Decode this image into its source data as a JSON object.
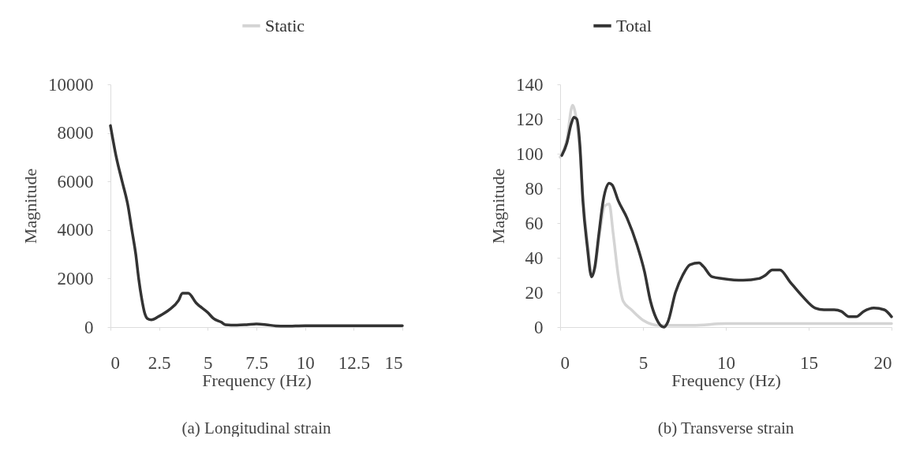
{
  "chart_data": [
    {
      "type": "line",
      "xlabel": "Frequency (Hz)",
      "ylabel": "Magnitude",
      "annotations": [
        "(a) Longitudinal strain"
      ],
      "xlim": [
        0,
        15
      ],
      "xticks": [
        0,
        2.5,
        5,
        7.5,
        10,
        12.5,
        15
      ],
      "ylim": [
        0,
        10000
      ],
      "yticks": [
        0,
        2000,
        4000,
        6000,
        8000,
        10000
      ],
      "legend": "top",
      "grid": false,
      "x": [
        0,
        0.3,
        0.6,
        0.9,
        1.1,
        1.3,
        1.45,
        1.6,
        1.75,
        1.9,
        2.1,
        2.5,
        3,
        3.5,
        3.7,
        4,
        4.4,
        5,
        5.3,
        5.7,
        5.9,
        6.5,
        7,
        7.5,
        8,
        8.5,
        9,
        10,
        11,
        12,
        13,
        14,
        15
      ],
      "series": [
        {
          "name": "Total",
          "color": "#333333",
          "values": [
            8300,
            7000,
            6000,
            5000,
            4000,
            3000,
            2000,
            1200,
            600,
            350,
            300,
            450,
            700,
            1100,
            1400,
            1400,
            1000,
            600,
            350,
            200,
            100,
            80,
            100,
            130,
            100,
            50,
            40,
            60,
            60,
            60,
            60,
            60,
            60
          ]
        }
      ]
    },
    {
      "type": "line",
      "xlabel": "Frequency (Hz)",
      "ylabel": "Magnitude",
      "annotations": [
        "(b) Transverse strain"
      ],
      "xlim": [
        0,
        20
      ],
      "xticks": [
        0,
        5,
        10,
        15,
        20
      ],
      "ylim": [
        0,
        140
      ],
      "yticks": [
        0,
        20,
        40,
        60,
        80,
        100,
        120,
        140
      ],
      "legend": "top",
      "grid": false,
      "series": [
        {
          "name": "Static",
          "color": "#d4d4d4",
          "x": [
            0,
            0.4,
            0.75,
            1.0,
            1.2,
            1.4,
            1.7,
            1.9,
            2.1,
            2.4,
            2.7,
            2.96,
            3.2,
            3.5,
            3.8,
            4.3,
            5,
            6,
            8,
            10,
            12,
            14,
            16,
            18,
            20
          ],
          "values": [
            98,
            108,
            128,
            118,
            100,
            72,
            45,
            29,
            34,
            55,
            70,
            71,
            54,
            30,
            15,
            10,
            4,
            1,
            1,
            2,
            2,
            2,
            2,
            2,
            2
          ]
        },
        {
          "name": "Total",
          "color": "#333333",
          "x": [
            0.1,
            0.4,
            0.66,
            0.83,
            1.0,
            1.19,
            1.37,
            1.63,
            1.9,
            2.08,
            2.34,
            2.6,
            2.96,
            3.14,
            3.5,
            4.03,
            4.65,
            5.09,
            5.45,
            5.8,
            6.25,
            6.5,
            6.96,
            7.4,
            7.84,
            8.38,
            8.64,
            9.17,
            9.8,
            11.04,
            12,
            12.4,
            12.8,
            13.26,
            13.88,
            14.6,
            15.39,
            15.92,
            16.54,
            16.98,
            17.43,
            17.87,
            18.31,
            18.93,
            19.56,
            20
          ],
          "values": [
            99,
            106,
            117,
            121,
            120,
            105,
            73,
            47,
            29,
            34,
            54,
            73,
            83,
            82,
            73,
            63,
            47,
            32,
            15,
            5,
            0,
            3,
            20,
            30,
            36,
            37,
            35,
            29,
            28,
            27,
            28,
            30,
            33,
            33,
            26,
            18,
            11,
            10,
            10,
            9,
            6,
            6,
            9,
            11,
            10,
            6
          ]
        }
      ]
    }
  ]
}
